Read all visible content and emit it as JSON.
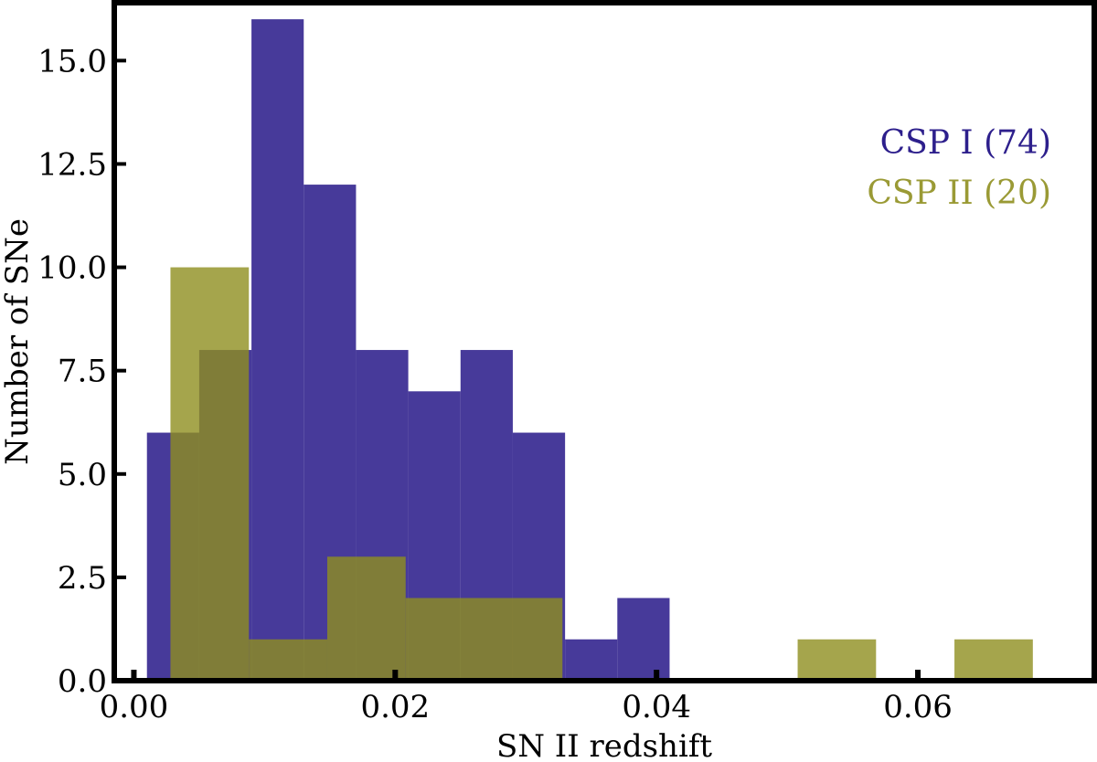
{
  "chart_data": {
    "type": "bar",
    "xlabel": "SN II redshift",
    "ylabel": "Number of SNe",
    "xlim": [
      -0.0015,
      0.0735
    ],
    "ylim": [
      0,
      16.4
    ],
    "xticks": [
      0.0,
      0.02,
      0.04,
      0.06
    ],
    "xtick_labels": [
      "0.00",
      "0.02",
      "0.04",
      "0.06"
    ],
    "yticks": [
      0.0,
      2.5,
      5.0,
      7.5,
      10.0,
      12.5,
      15.0
    ],
    "ytick_labels": [
      "0.0",
      "2.5",
      "5.0",
      "7.5",
      "10.0",
      "12.5",
      "15.0"
    ],
    "grid": false,
    "legend_placement": "top-right",
    "series": [
      {
        "name": "CSP I (74)",
        "color": "#2d1f8c",
        "opacity": 0.88,
        "bins": [
          {
            "x0": 0.001,
            "x1": 0.005,
            "value": 6
          },
          {
            "x0": 0.005,
            "x1": 0.009,
            "value": 8
          },
          {
            "x0": 0.009,
            "x1": 0.013,
            "value": 16
          },
          {
            "x0": 0.013,
            "x1": 0.017,
            "value": 12
          },
          {
            "x0": 0.017,
            "x1": 0.021,
            "value": 8
          },
          {
            "x0": 0.021,
            "x1": 0.025,
            "value": 7
          },
          {
            "x0": 0.025,
            "x1": 0.029,
            "value": 8
          },
          {
            "x0": 0.029,
            "x1": 0.033,
            "value": 6
          },
          {
            "x0": 0.033,
            "x1": 0.037,
            "value": 1
          },
          {
            "x0": 0.037,
            "x1": 0.041,
            "value": 2
          }
        ]
      },
      {
        "name": "CSP II (20)",
        "color": "#8f8f1f",
        "opacity": 0.8,
        "bins": [
          {
            "x0": 0.0028,
            "x1": 0.0088,
            "value": 10
          },
          {
            "x0": 0.0088,
            "x1": 0.0148,
            "value": 1
          },
          {
            "x0": 0.0148,
            "x1": 0.0208,
            "value": 3
          },
          {
            "x0": 0.0208,
            "x1": 0.0268,
            "value": 2
          },
          {
            "x0": 0.0268,
            "x1": 0.0328,
            "value": 2
          },
          {
            "x0": 0.0328,
            "x1": 0.0388,
            "value": 0
          },
          {
            "x0": 0.0388,
            "x1": 0.0448,
            "value": 0
          },
          {
            "x0": 0.0448,
            "x1": 0.0508,
            "value": 0
          },
          {
            "x0": 0.0508,
            "x1": 0.0568,
            "value": 1
          },
          {
            "x0": 0.0568,
            "x1": 0.0628,
            "value": 0
          },
          {
            "x0": 0.0628,
            "x1": 0.0688,
            "value": 1
          }
        ]
      }
    ]
  }
}
